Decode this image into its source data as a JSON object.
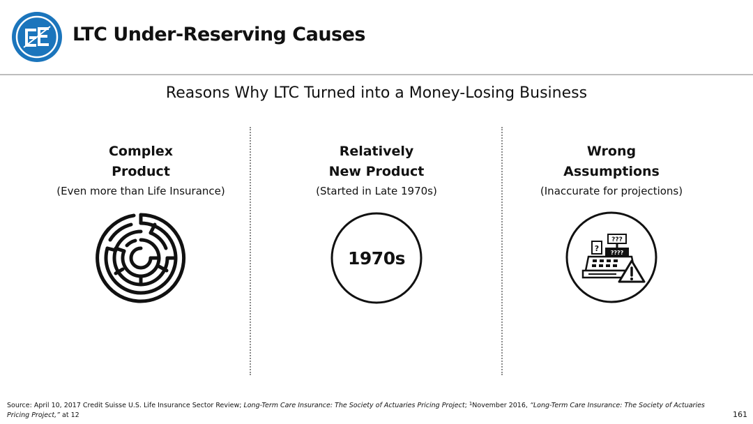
{
  "header": {
    "title": "LTC Under-Reserving Causes",
    "logo_icon": "ge-circle-logo-icon",
    "brand_color": "#1b75bc"
  },
  "subtitle": "Reasons Why LTC Turned into a Money-Losing Business",
  "columns": [
    {
      "heading_line1": "Complex",
      "heading_line2": "Product",
      "note": "(Even more than Life Insurance)",
      "icon": "maze-icon"
    },
    {
      "heading_line1": "Relatively",
      "heading_line2": "New Product",
      "note": "(Started in Late 1970s)",
      "icon": "year-badge-icon",
      "icon_text": "1970s"
    },
    {
      "heading_line1": "Wrong",
      "heading_line2": "Assumptions",
      "note": "(Inaccurate for projections)",
      "icon": "calculator-warning-icon",
      "icon_text_question": "?",
      "icon_text_display": "???",
      "icon_text_screen": "????"
    }
  ],
  "footer": {
    "source_prefix": "Source: April 10, 2017 Credit Suisse U.S. Life Insurance Sector Review; ",
    "source_title1": "Long-Term Care Insurance: The Society of Actuaries Pricing Project",
    "source_mid": "; ",
    "source_sup": "1",
    "source_date": "November 2016, ",
    "source_title2": "“Long-Term Care Insurance: The Society of Actuaries Pricing Project,”",
    "source_suffix": " at 12"
  },
  "page_number": "161"
}
